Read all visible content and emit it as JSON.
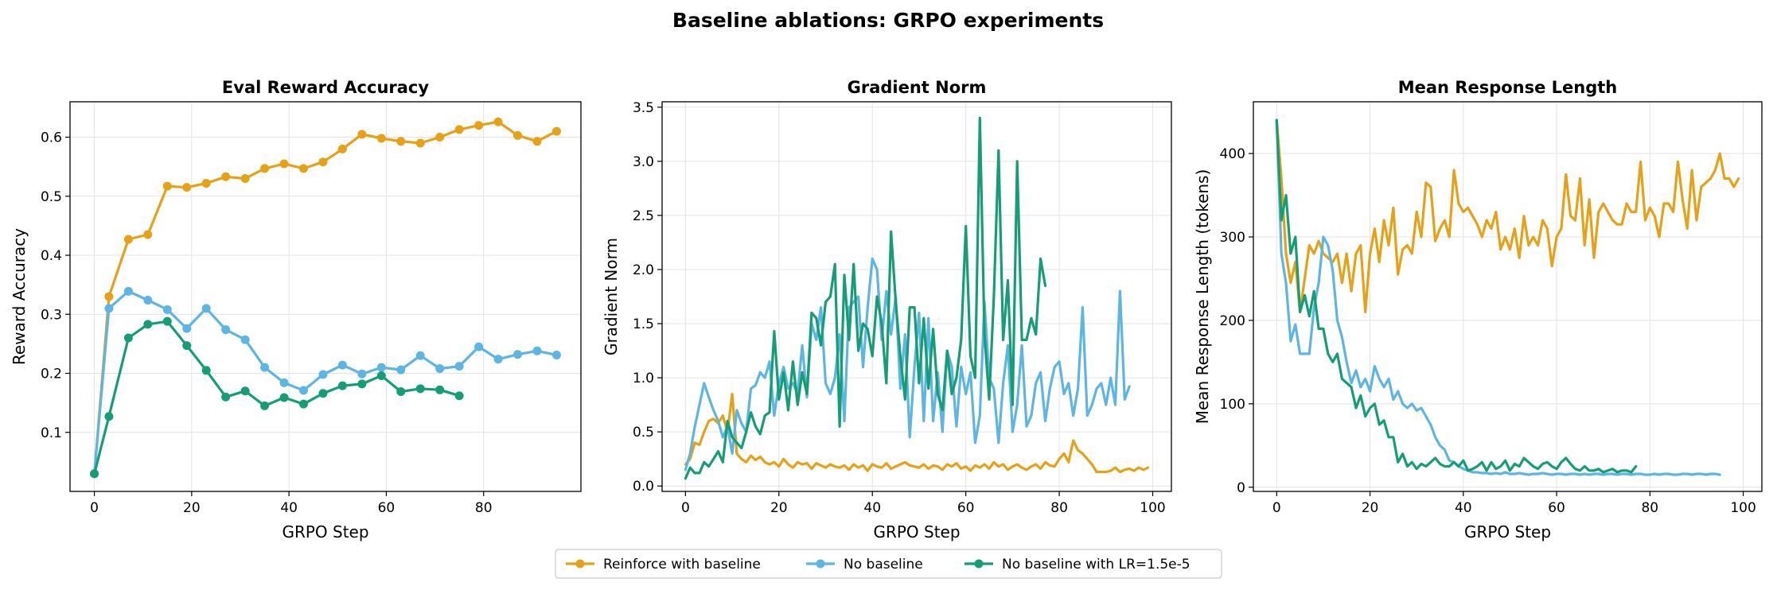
{
  "figure_title": "Baseline ablations: GRPO experiments",
  "colors": {
    "reinforce_with_baseline": "#E6A117",
    "no_baseline": "#5DB5E3",
    "no_baseline_lr": "#159E76"
  },
  "legend": {
    "placement": "bottom-center",
    "entries": [
      "Reinforce with baseline",
      "No baseline",
      "No baseline with LR=1.5e-5"
    ]
  },
  "chart_data": [
    {
      "type": "line",
      "title": "Eval Reward Accuracy",
      "xlabel": "GRPO Step",
      "ylabel": "Reward Accuracy",
      "xlim": [
        -5,
        100
      ],
      "ylim": [
        0.0,
        0.66
      ],
      "xticks": [
        0,
        20,
        40,
        60,
        80
      ],
      "yticks": [
        0.1,
        0.2,
        0.3,
        0.4,
        0.5,
        0.6
      ],
      "grid": true,
      "markers": true,
      "series": [
        {
          "name": "Reinforce with baseline",
          "color": "#E6A117",
          "x": [
            0,
            3,
            7,
            11,
            15,
            19,
            23,
            27,
            31,
            35,
            39,
            43,
            47,
            51,
            55,
            59,
            63,
            67,
            71,
            75,
            79,
            83,
            87,
            91,
            95
          ],
          "y": [
            0.03,
            0.33,
            0.427,
            0.435,
            0.517,
            0.515,
            0.522,
            0.533,
            0.53,
            0.547,
            0.555,
            0.547,
            0.558,
            0.58,
            0.605,
            0.598,
            0.593,
            0.59,
            0.6,
            0.613,
            0.62,
            0.626,
            0.603,
            0.593,
            0.61
          ]
        },
        {
          "name": "No baseline",
          "color": "#5DB5E3",
          "x": [
            0,
            3,
            7,
            11,
            15,
            19,
            23,
            27,
            31,
            35,
            39,
            43,
            47,
            51,
            55,
            59,
            63,
            67,
            71,
            75,
            79,
            83,
            87,
            91,
            95
          ],
          "y": [
            0.03,
            0.31,
            0.339,
            0.324,
            0.308,
            0.276,
            0.31,
            0.274,
            0.257,
            0.21,
            0.184,
            0.171,
            0.198,
            0.214,
            0.199,
            0.21,
            0.206,
            0.23,
            0.208,
            0.212,
            0.245,
            0.224,
            0.232,
            0.238,
            0.231
          ]
        },
        {
          "name": "No baseline with LR=1.5e-5",
          "color": "#159E76",
          "x": [
            0,
            3,
            7,
            11,
            15,
            19,
            23,
            27,
            31,
            35,
            39,
            43,
            47,
            51,
            55,
            59,
            63,
            67,
            71,
            75
          ],
          "y": [
            0.03,
            0.127,
            0.26,
            0.283,
            0.288,
            0.247,
            0.205,
            0.16,
            0.17,
            0.145,
            0.159,
            0.148,
            0.166,
            0.179,
            0.182,
            0.196,
            0.169,
            0.174,
            0.172,
            0.162
          ]
        }
      ]
    },
    {
      "type": "line",
      "title": "Gradient Norm",
      "xlabel": "GRPO Step",
      "ylabel": "Gradient Norm",
      "xlim": [
        -5,
        104
      ],
      "ylim": [
        -0.05,
        3.55
      ],
      "xticks": [
        0,
        20,
        40,
        60,
        80,
        100
      ],
      "yticks": [
        0.0,
        0.5,
        1.0,
        1.5,
        2.0,
        2.5,
        3.0,
        3.5
      ],
      "grid": true,
      "markers": false,
      "series": [
        {
          "name": "Reinforce with baseline",
          "color": "#E6A117",
          "x_start": 0,
          "y": [
            0.2,
            0.25,
            0.4,
            0.38,
            0.5,
            0.6,
            0.62,
            0.58,
            0.65,
            0.5,
            0.85,
            0.3,
            0.25,
            0.22,
            0.28,
            0.24,
            0.27,
            0.22,
            0.2,
            0.22,
            0.18,
            0.25,
            0.2,
            0.17,
            0.22,
            0.2,
            0.21,
            0.16,
            0.21,
            0.19,
            0.17,
            0.2,
            0.18,
            0.17,
            0.19,
            0.15,
            0.2,
            0.17,
            0.19,
            0.14,
            0.2,
            0.18,
            0.17,
            0.21,
            0.16,
            0.18,
            0.2,
            0.22,
            0.19,
            0.18,
            0.17,
            0.2,
            0.16,
            0.19,
            0.18,
            0.15,
            0.2,
            0.18,
            0.21,
            0.16,
            0.18,
            0.14,
            0.19,
            0.17,
            0.2,
            0.16,
            0.22,
            0.18,
            0.2,
            0.15,
            0.18,
            0.2,
            0.17,
            0.15,
            0.18,
            0.2,
            0.16,
            0.22,
            0.19,
            0.18,
            0.25,
            0.3,
            0.22,
            0.42,
            0.33,
            0.3,
            0.25,
            0.2,
            0.13,
            0.13,
            0.13,
            0.14,
            0.17,
            0.13,
            0.15,
            0.16,
            0.14,
            0.17,
            0.15,
            0.17
          ]
        },
        {
          "name": "No baseline",
          "color": "#5DB5E3",
          "x_start": 0,
          "y": [
            0.15,
            0.3,
            0.55,
            0.75,
            0.95,
            0.82,
            0.7,
            0.6,
            0.45,
            0.55,
            0.3,
            0.7,
            0.58,
            0.5,
            0.9,
            0.93,
            1.05,
            1.0,
            1.15,
            0.65,
            0.95,
            1.1,
            0.9,
            0.95,
            0.85,
            1.3,
            0.82,
            1.5,
            1.35,
            1.65,
            0.95,
            0.85,
            1.0,
            1.4,
            0.6,
            1.65,
            1.7,
            1.75,
            1.1,
            1.65,
            2.1,
            2.0,
            1.35,
            1.8,
            1.4,
            1.75,
            0.9,
            1.4,
            0.45,
            1.1,
            1.6,
            0.6,
            1.55,
            0.6,
            1.05,
            0.5,
            1.25,
            1.1,
            0.55,
            1.1,
            0.85,
            1.05,
            0.4,
            0.65,
            1.7,
            1.0,
            0.9,
            0.4,
            0.95,
            1.3,
            0.5,
            0.75,
            1.3,
            0.55,
            0.65,
            0.95,
            1.05,
            0.6,
            0.9,
            1.1,
            1.15,
            0.85,
            0.95,
            0.65,
            0.9,
            1.65,
            0.65,
            0.75,
            0.9,
            0.95,
            0.75,
            1.0,
            0.75,
            1.8,
            0.8,
            0.92
          ]
        },
        {
          "name": "No baseline with LR=1.5e-5",
          "color": "#159E76",
          "x_start": 0,
          "y": [
            0.07,
            0.17,
            0.12,
            0.12,
            0.22,
            0.18,
            0.25,
            0.32,
            0.22,
            0.6,
            0.45,
            0.4,
            0.35,
            0.5,
            0.68,
            0.55,
            0.48,
            0.65,
            0.68,
            1.43,
            0.8,
            1.05,
            0.7,
            1.15,
            0.75,
            1.05,
            0.85,
            1.6,
            1.55,
            1.3,
            1.7,
            1.75,
            2.05,
            0.55,
            1.95,
            1.35,
            2.05,
            1.25,
            1.5,
            1.45,
            1.2,
            1.75,
            1.5,
            0.95,
            2.35,
            1.7,
            1.2,
            0.8,
            1.65,
            1.65,
            0.95,
            1.55,
            0.9,
            1.45,
            0.85,
            0.7,
            1.25,
            0.85,
            1.0,
            1.35,
            2.4,
            1.2,
            1.0,
            3.4,
            1.4,
            0.8,
            1.75,
            3.1,
            1.35,
            1.9,
            0.75,
            3.0,
            1.35,
            1.35,
            1.55,
            1.4,
            2.1,
            1.85
          ]
        }
      ]
    },
    {
      "type": "line",
      "title": "Mean Response Length",
      "xlabel": "GRPO Step",
      "ylabel": "Mean Response Length (tokens)",
      "xlim": [
        -5,
        104
      ],
      "ylim": [
        -5,
        462
      ],
      "xticks": [
        0,
        20,
        40,
        60,
        80,
        100
      ],
      "yticks": [
        0,
        100,
        200,
        300,
        400
      ],
      "grid": true,
      "markers": false,
      "series": [
        {
          "name": "Reinforce with baseline",
          "color": "#E6A117",
          "x_start": 0,
          "y": [
            440,
            370,
            280,
            245,
            270,
            210,
            250,
            290,
            280,
            295,
            280,
            275,
            270,
            280,
            245,
            280,
            235,
            280,
            290,
            210,
            280,
            310,
            270,
            320,
            290,
            335,
            255,
            285,
            290,
            280,
            330,
            300,
            365,
            360,
            295,
            310,
            320,
            300,
            380,
            340,
            330,
            335,
            325,
            315,
            300,
            320,
            310,
            330,
            285,
            300,
            285,
            310,
            275,
            325,
            290,
            300,
            290,
            320,
            310,
            265,
            300,
            310,
            375,
            325,
            320,
            370,
            290,
            345,
            275,
            330,
            340,
            330,
            320,
            315,
            315,
            340,
            330,
            330,
            390,
            320,
            335,
            325,
            300,
            340,
            340,
            330,
            390,
            345,
            310,
            380,
            320,
            360,
            365,
            370,
            380,
            400,
            370,
            370,
            360,
            370
          ]
        },
        {
          "name": "No baseline",
          "color": "#5DB5E3",
          "x_start": 0,
          "y": [
            440,
            280,
            245,
            175,
            195,
            160,
            160,
            160,
            215,
            245,
            300,
            290,
            260,
            200,
            180,
            150,
            125,
            140,
            120,
            130,
            115,
            145,
            130,
            120,
            130,
            105,
            115,
            100,
            95,
            100,
            92,
            95,
            85,
            75,
            60,
            50,
            45,
            32,
            30,
            25,
            22,
            20,
            18,
            18,
            17,
            17,
            16,
            17,
            16,
            18,
            16,
            16,
            17,
            16,
            15,
            16,
            16,
            17,
            16,
            15,
            16,
            16,
            15,
            16,
            16,
            15,
            16,
            15,
            16,
            16,
            15,
            16,
            16,
            15,
            16,
            16,
            15,
            16,
            16,
            15,
            15,
            16,
            15,
            16,
            16,
            15,
            15,
            16,
            16,
            15,
            16,
            16,
            15,
            16,
            16,
            15
          ]
        },
        {
          "name": "No baseline with LR=1.5e-5",
          "color": "#159E76",
          "x_start": 0,
          "y": [
            440,
            320,
            350,
            280,
            300,
            210,
            230,
            205,
            235,
            190,
            190,
            160,
            150,
            160,
            130,
            125,
            120,
            95,
            110,
            85,
            95,
            100,
            75,
            80,
            60,
            60,
            30,
            40,
            25,
            30,
            22,
            28,
            25,
            30,
            35,
            28,
            25,
            25,
            30,
            25,
            32,
            20,
            22,
            25,
            30,
            20,
            30,
            22,
            25,
            32,
            20,
            28,
            25,
            35,
            30,
            25,
            22,
            28,
            30,
            25,
            22,
            30,
            35,
            28,
            22,
            20,
            25,
            20,
            20,
            22,
            18,
            20,
            22,
            18,
            20,
            20,
            18,
            25
          ]
        }
      ]
    }
  ]
}
